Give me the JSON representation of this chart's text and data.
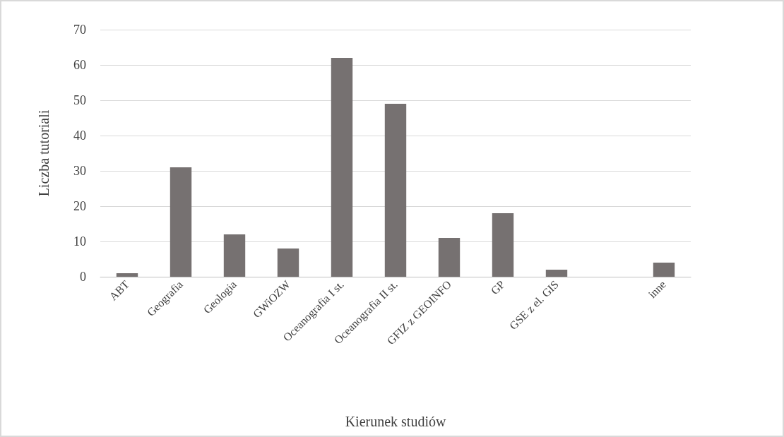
{
  "chart_data": {
    "type": "bar",
    "xlabel": "Kierunek studiów",
    "ylabel": "Liczba tutoriali",
    "categories": [
      "ABT",
      "Geografia",
      "Geologia",
      "GWiOZW",
      "Oceanografia I st.",
      "Oceanografia II st.",
      "GFIZ z GEOINFO",
      "GP",
      "GSE z el. GIS",
      null,
      "inne"
    ],
    "values": [
      1,
      31,
      12,
      8,
      62,
      49,
      11,
      18,
      2,
      null,
      4
    ],
    "color": "#767171",
    "ylim": [
      0,
      70
    ],
    "yticks": [
      0,
      10,
      20,
      30,
      40,
      50,
      60,
      70
    ],
    "grid": "y"
  }
}
